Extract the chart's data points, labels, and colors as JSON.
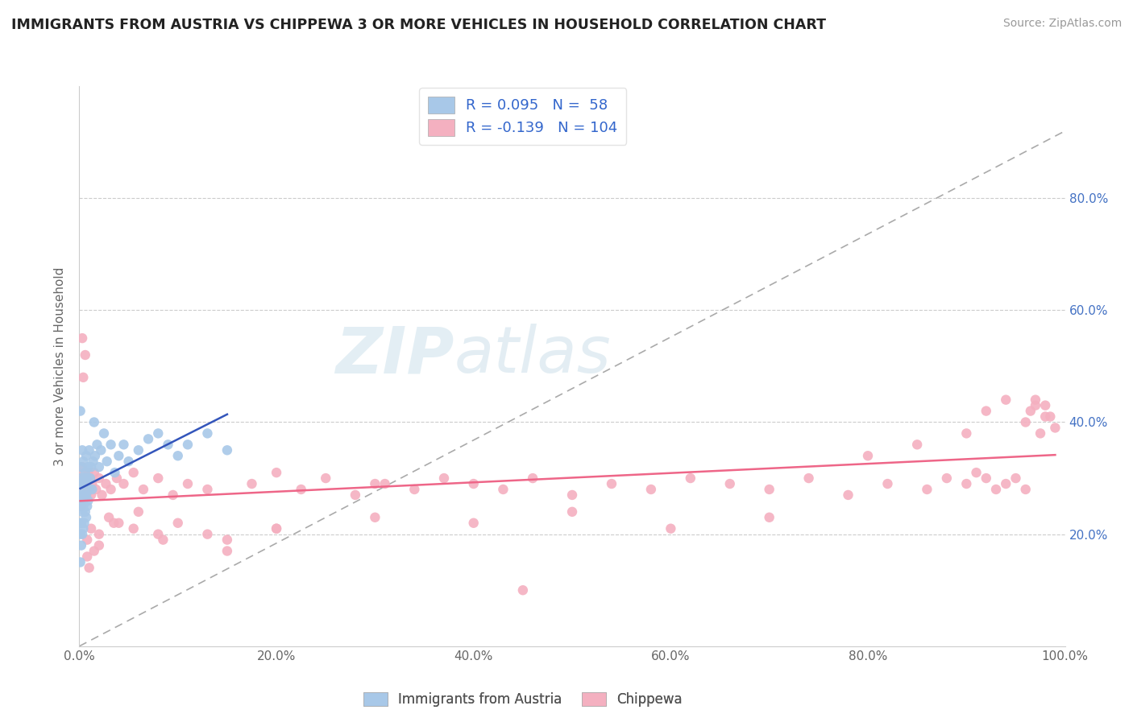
{
  "title": "IMMIGRANTS FROM AUSTRIA VS CHIPPEWA 3 OR MORE VEHICLES IN HOUSEHOLD CORRELATION CHART",
  "source": "Source: ZipAtlas.com",
  "ylabel": "3 or more Vehicles in Household",
  "xlim": [
    0,
    1.0
  ],
  "ylim": [
    0,
    1.0
  ],
  "xtick_labels": [
    "0.0%",
    "20.0%",
    "40.0%",
    "60.0%",
    "80.0%",
    "100.0%"
  ],
  "xtick_vals": [
    0.0,
    0.2,
    0.4,
    0.6,
    0.8,
    1.0
  ],
  "right_ytick_labels": [
    "20.0%",
    "40.0%",
    "60.0%",
    "80.0%"
  ],
  "right_ytick_vals": [
    0.2,
    0.4,
    0.6,
    0.8
  ],
  "austria_color": "#a8c8e8",
  "chippewa_color": "#f4b0c0",
  "austria_line_color": "#3355bb",
  "chippewa_line_color": "#ee6688",
  "austria_R": 0.095,
  "austria_N": 58,
  "chippewa_R": -0.139,
  "chippewa_N": 104,
  "legend_label_austria": "Immigrants from Austria",
  "legend_label_chippewa": "Chippewa",
  "watermark_zip": "ZIP",
  "watermark_atlas": "atlas",
  "background_color": "#ffffff",
  "grid_color": "#cccccc",
  "austria_x": [
    0.001,
    0.001,
    0.001,
    0.001,
    0.001,
    0.002,
    0.002,
    0.002,
    0.002,
    0.002,
    0.003,
    0.003,
    0.003,
    0.003,
    0.004,
    0.004,
    0.004,
    0.004,
    0.005,
    0.005,
    0.005,
    0.006,
    0.006,
    0.007,
    0.007,
    0.007,
    0.008,
    0.008,
    0.009,
    0.009,
    0.01,
    0.01,
    0.011,
    0.012,
    0.013,
    0.014,
    0.015,
    0.016,
    0.018,
    0.02,
    0.022,
    0.025,
    0.028,
    0.032,
    0.036,
    0.04,
    0.045,
    0.05,
    0.06,
    0.07,
    0.08,
    0.09,
    0.1,
    0.11,
    0.13,
    0.15,
    0.001,
    0.001
  ],
  "austria_y": [
    0.2,
    0.22,
    0.25,
    0.28,
    0.3,
    0.18,
    0.22,
    0.26,
    0.29,
    0.32,
    0.2,
    0.24,
    0.27,
    0.35,
    0.21,
    0.25,
    0.29,
    0.33,
    0.22,
    0.27,
    0.3,
    0.24,
    0.31,
    0.23,
    0.27,
    0.34,
    0.25,
    0.3,
    0.26,
    0.32,
    0.28,
    0.35,
    0.3,
    0.32,
    0.28,
    0.33,
    0.4,
    0.34,
    0.36,
    0.32,
    0.35,
    0.38,
    0.33,
    0.36,
    0.31,
    0.34,
    0.36,
    0.33,
    0.35,
    0.37,
    0.38,
    0.36,
    0.34,
    0.36,
    0.38,
    0.35,
    0.42,
    0.15
  ],
  "chippewa_x": [
    0.001,
    0.002,
    0.002,
    0.003,
    0.003,
    0.004,
    0.004,
    0.005,
    0.005,
    0.006,
    0.007,
    0.008,
    0.009,
    0.01,
    0.011,
    0.012,
    0.013,
    0.015,
    0.017,
    0.02,
    0.023,
    0.027,
    0.032,
    0.038,
    0.045,
    0.055,
    0.065,
    0.08,
    0.095,
    0.11,
    0.13,
    0.15,
    0.175,
    0.2,
    0.225,
    0.25,
    0.28,
    0.31,
    0.34,
    0.37,
    0.4,
    0.43,
    0.46,
    0.5,
    0.54,
    0.58,
    0.62,
    0.66,
    0.7,
    0.74,
    0.78,
    0.82,
    0.86,
    0.88,
    0.9,
    0.91,
    0.92,
    0.93,
    0.94,
    0.95,
    0.96,
    0.965,
    0.97,
    0.975,
    0.98,
    0.985,
    0.99,
    0.003,
    0.004,
    0.006,
    0.008,
    0.01,
    0.015,
    0.02,
    0.03,
    0.04,
    0.06,
    0.08,
    0.1,
    0.15,
    0.2,
    0.3,
    0.4,
    0.5,
    0.6,
    0.7,
    0.8,
    0.85,
    0.9,
    0.92,
    0.94,
    0.96,
    0.97,
    0.98,
    0.008,
    0.012,
    0.02,
    0.035,
    0.055,
    0.085,
    0.13,
    0.2,
    0.3,
    0.45
  ],
  "chippewa_y": [
    0.28,
    0.3,
    0.25,
    0.32,
    0.27,
    0.29,
    0.26,
    0.31,
    0.28,
    0.3,
    0.27,
    0.29,
    0.31,
    0.28,
    0.3,
    0.27,
    0.29,
    0.31,
    0.28,
    0.3,
    0.27,
    0.29,
    0.28,
    0.3,
    0.29,
    0.31,
    0.28,
    0.3,
    0.27,
    0.29,
    0.28,
    0.17,
    0.29,
    0.31,
    0.28,
    0.3,
    0.27,
    0.29,
    0.28,
    0.3,
    0.29,
    0.28,
    0.3,
    0.27,
    0.29,
    0.28,
    0.3,
    0.29,
    0.28,
    0.3,
    0.27,
    0.29,
    0.28,
    0.3,
    0.29,
    0.31,
    0.3,
    0.28,
    0.29,
    0.3,
    0.28,
    0.42,
    0.44,
    0.38,
    0.43,
    0.41,
    0.39,
    0.55,
    0.48,
    0.52,
    0.16,
    0.14,
    0.17,
    0.18,
    0.23,
    0.22,
    0.24,
    0.2,
    0.22,
    0.19,
    0.21,
    0.23,
    0.22,
    0.24,
    0.21,
    0.23,
    0.34,
    0.36,
    0.38,
    0.42,
    0.44,
    0.4,
    0.43,
    0.41,
    0.19,
    0.21,
    0.2,
    0.22,
    0.21,
    0.19,
    0.2,
    0.21,
    0.29,
    0.1
  ]
}
